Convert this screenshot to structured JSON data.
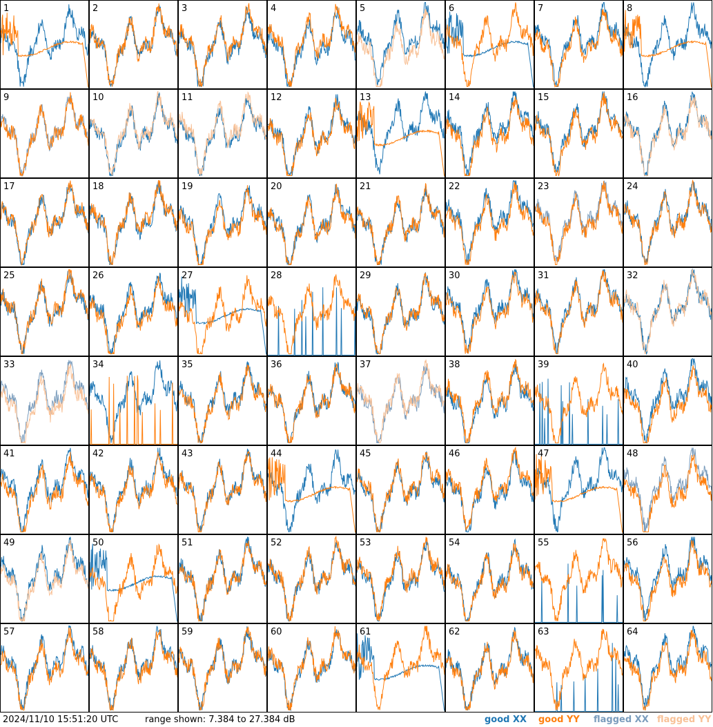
{
  "chart_data": {
    "type": "line",
    "grid": {
      "rows": 8,
      "cols": 8
    },
    "panel_labels": [
      "1",
      "2",
      "3",
      "4",
      "5",
      "6",
      "7",
      "8",
      "9",
      "10",
      "11",
      "12",
      "13",
      "14",
      "15",
      "16",
      "17",
      "18",
      "19",
      "20",
      "21",
      "22",
      "23",
      "24",
      "25",
      "26",
      "27",
      "28",
      "29",
      "30",
      "31",
      "32",
      "33",
      "34",
      "35",
      "36",
      "37",
      "38",
      "39",
      "40",
      "41",
      "42",
      "43",
      "44",
      "45",
      "46",
      "47",
      "48",
      "49",
      "50",
      "51",
      "52",
      "53",
      "54",
      "55",
      "56",
      "57",
      "58",
      "59",
      "60",
      "61",
      "62",
      "63",
      "64"
    ],
    "ylim": [
      7.384,
      27.384
    ],
    "yunit": "dB",
    "colors": {
      "good_xx": "#1f77b4",
      "good_yy": "#ff7f0e",
      "flagged_xx": "#7a9cbc",
      "flagged_yy": "#f8c197"
    },
    "panel_status": {
      "xx_flagged": [
        9,
        23,
        33,
        37,
        48
      ],
      "yy_flagged": [
        5,
        10,
        11,
        16,
        32,
        33,
        37,
        49
      ],
      "xx_mostly_empty": [
        28,
        39,
        55,
        63
      ],
      "yy_mostly_empty": [
        34
      ],
      "yy_flat_decay": [
        1,
        8,
        13,
        44,
        47
      ],
      "xx_flat_decay": [
        6,
        27,
        50,
        61
      ]
    }
  },
  "footer": {
    "timestamp": "2024/11/10 15:51:20 UTC",
    "range_text": "range shown: 7.384 to 27.384 dB",
    "legend": [
      {
        "label": "good XX",
        "color": "#1f77b4"
      },
      {
        "label": "good YY",
        "color": "#ff7f0e"
      },
      {
        "label": "flagged XX",
        "color": "#7a9cbc"
      },
      {
        "label": "flagged YY",
        "color": "#f8c197"
      }
    ]
  }
}
